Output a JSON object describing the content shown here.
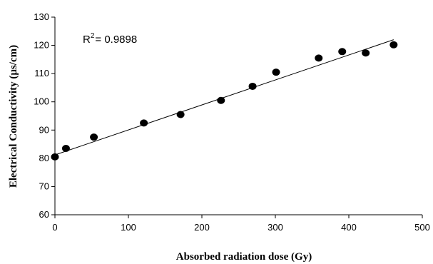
{
  "chart_data": {
    "type": "scatter",
    "title": "",
    "xlabel": "Absorbed radiation dose (Gy)",
    "ylabel": "Electrical Conductivity (µs/cm)",
    "xlim": [
      0,
      500
    ],
    "ylim": [
      60,
      130
    ],
    "xticks": [
      0,
      100,
      200,
      300,
      400,
      500
    ],
    "yticks": [
      60,
      70,
      80,
      90,
      100,
      110,
      120,
      130
    ],
    "grid": false,
    "legend": "none",
    "annotation": {
      "base": "R",
      "sup": "2",
      "rest": "= 0.9898"
    },
    "series": [
      {
        "marker": "filled-circle",
        "color": "#000000",
        "points": [
          [
            0,
            80.5
          ],
          [
            15,
            83.5
          ],
          [
            53,
            87.5
          ],
          [
            121,
            92.5
          ],
          [
            171,
            95.5
          ],
          [
            226,
            100.5
          ],
          [
            269,
            105.5
          ],
          [
            301,
            110.5
          ],
          [
            359,
            115.5
          ],
          [
            391,
            117.8
          ],
          [
            423,
            117.3
          ],
          [
            461,
            120.2
          ]
        ]
      }
    ],
    "trendline": {
      "x": [
        0,
        461
      ],
      "y": [
        81.2,
        122
      ]
    }
  }
}
